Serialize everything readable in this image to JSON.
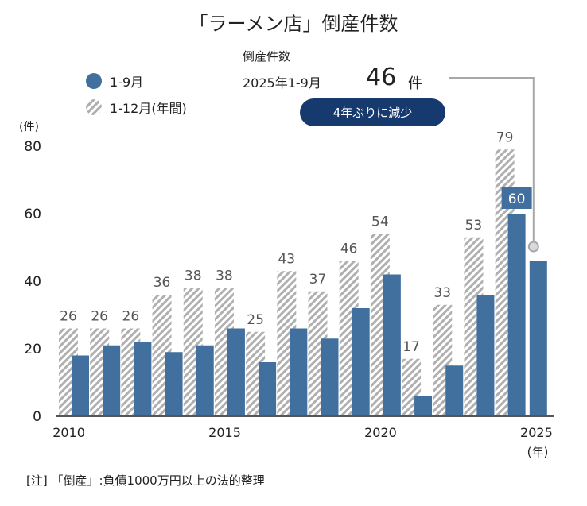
{
  "chart_data": {
    "type": "bar",
    "title": "「ラーメン店」倒産件数",
    "ylabel": "(件)",
    "xlabel": "(年)",
    "ylim": [
      0,
      80
    ],
    "yticks": [
      0,
      20,
      40,
      60,
      80
    ],
    "xtick_labels": [
      "2010",
      "2015",
      "2020",
      "2025"
    ],
    "categories": [
      "2010",
      "2011",
      "2012",
      "2013",
      "2014",
      "2015",
      "2016",
      "2017",
      "2018",
      "2019",
      "2020",
      "2021",
      "2022",
      "2023",
      "2024",
      "2025"
    ],
    "series": [
      {
        "name": "1-12月(年間)",
        "style": "hatched",
        "color": "#b0b0b0",
        "values": [
          26,
          26,
          26,
          36,
          38,
          38,
          25,
          43,
          37,
          46,
          54,
          17,
          33,
          53,
          79,
          null
        ],
        "labels_shown": true
      },
      {
        "name": "1-9月",
        "style": "solid",
        "color": "#42709e",
        "values": [
          18,
          21,
          22,
          19,
          21,
          26,
          16,
          26,
          23,
          32,
          42,
          6,
          15,
          36,
          60,
          46
        ],
        "highlight_label": {
          "category": "2024",
          "value": "60"
        }
      }
    ],
    "legend": "top-left",
    "grid": false
  },
  "callout": {
    "label": "倒産件数",
    "period": "2025年1-9月",
    "value": "46",
    "unit": "件",
    "badge": "4年ぶりに減少",
    "badge_color": "#173a6e"
  },
  "legend_items": [
    {
      "label": "1-9月"
    },
    {
      "label": "1-12月(年間)"
    }
  ],
  "note": "[注] 「倒産」:負債1000万円以上の法的整理",
  "colors": {
    "solid_bar": "#42709e",
    "hatch": "#b0b0b0",
    "axis": "#555555",
    "leader": "#a8a8a8"
  }
}
